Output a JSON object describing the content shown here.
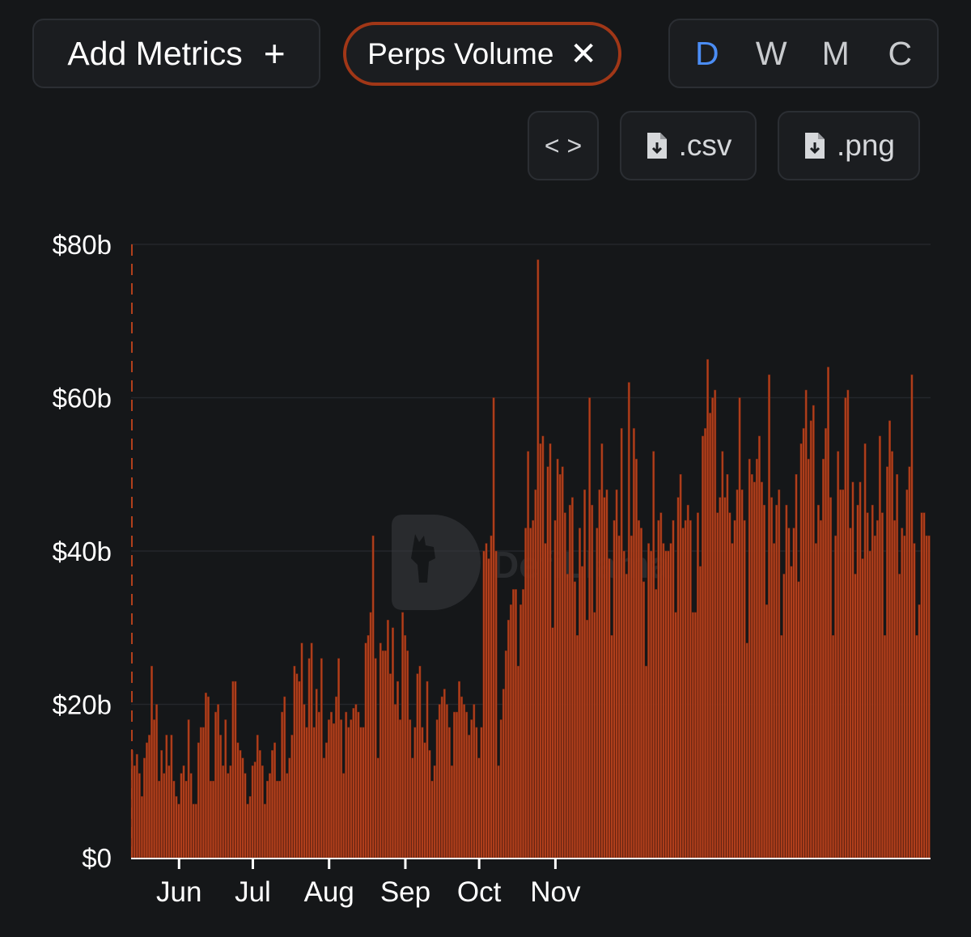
{
  "toolbar": {
    "add_metrics_label": "Add Metrics",
    "add_icon": "plus-icon",
    "active_metric": "Perps Volume",
    "remove_icon": "close-icon",
    "periods": [
      "D",
      "W",
      "M",
      "C"
    ],
    "active_period": "D",
    "embed_icon": "code-icon",
    "csv_label": ".csv",
    "png_label": ".png",
    "download_icon": "file-download-icon"
  },
  "watermark": {
    "text": "DefiLlama",
    "icon": "llama-logo-icon"
  },
  "colors": {
    "background": "#151719",
    "bar": "#b2401c",
    "bar_edge": "#6e2410",
    "accent_chip": "#a13717",
    "active_period": "#4b8df5"
  },
  "chart_data": {
    "type": "bar",
    "title": "",
    "series_name": "Perps Volume",
    "unit": "$b",
    "xlabel": "",
    "ylabel": "",
    "ylim": [
      0,
      80
    ],
    "yticks": [
      {
        "value": 0,
        "label": "$0"
      },
      {
        "value": 20,
        "label": "$20b"
      },
      {
        "value": 40,
        "label": "$40b"
      },
      {
        "value": 60,
        "label": "$60b"
      },
      {
        "value": 80,
        "label": "$80b"
      }
    ],
    "month_ticks": [
      {
        "index": 19,
        "label": "Jun"
      },
      {
        "index": 49,
        "label": "Jul"
      },
      {
        "index": 80,
        "label": "Aug"
      },
      {
        "index": 111,
        "label": "Sep"
      },
      {
        "index": 141,
        "label": "Oct"
      },
      {
        "index": 172,
        "label": "Nov"
      }
    ],
    "grid": true,
    "values": [
      14,
      12,
      13.5,
      11,
      8,
      13,
      15,
      16,
      25,
      18,
      20,
      10,
      14,
      11,
      16,
      12,
      16,
      10,
      8,
      7,
      11,
      12,
      10,
      18,
      11,
      7,
      7,
      15,
      17,
      17,
      21.5,
      21,
      10,
      10,
      19,
      20,
      16,
      12,
      18,
      11,
      12,
      23,
      23,
      15,
      14,
      13,
      11,
      7,
      8,
      12,
      12.5,
      16,
      14,
      12,
      7,
      10,
      11,
      14,
      15,
      10,
      10,
      19,
      21,
      11,
      13,
      16,
      25,
      24,
      23,
      28,
      20,
      17,
      26,
      28,
      17,
      22,
      19,
      26,
      13,
      15,
      18,
      19,
      17.5,
      21,
      26,
      18,
      11,
      19,
      17,
      18,
      19.5,
      20,
      19,
      17,
      17,
      28,
      29,
      32,
      42,
      26,
      13,
      28,
      27,
      27,
      31,
      24,
      30,
      20,
      23,
      18,
      32,
      29,
      27,
      18,
      13,
      17,
      24,
      25,
      17,
      15,
      23,
      14,
      10,
      12,
      18,
      20,
      21,
      22,
      20,
      17,
      12,
      19,
      19,
      23,
      21,
      20,
      19,
      16,
      18,
      20,
      17,
      13,
      17,
      40,
      41,
      39,
      42,
      60,
      40,
      12,
      18,
      22,
      27,
      31,
      33,
      35,
      35,
      25,
      33,
      35,
      43,
      53,
      43,
      44,
      48,
      78,
      54,
      55,
      41,
      51,
      54,
      30,
      44,
      52,
      50,
      51,
      45,
      37,
      46,
      47,
      36,
      29,
      43,
      38,
      48,
      31,
      60,
      46,
      32,
      43,
      48,
      54,
      47,
      48,
      39,
      29,
      44,
      48,
      42,
      56,
      40,
      37,
      62,
      42,
      56,
      52,
      44,
      43,
      36,
      25,
      41,
      40,
      53,
      35,
      44,
      45,
      41,
      40,
      40,
      41,
      44,
      32,
      47,
      50,
      43,
      44,
      46,
      44,
      32,
      32,
      45,
      38,
      55,
      56,
      65,
      58,
      60,
      61,
      45,
      47,
      53,
      47,
      50,
      45,
      41,
      44,
      48,
      60,
      48,
      44,
      28,
      52,
      50,
      49,
      52,
      55,
      49,
      46,
      33,
      63,
      47,
      41,
      46,
      48,
      29,
      37,
      46,
      43,
      38,
      43,
      50,
      36,
      54,
      56,
      61,
      52,
      57,
      59,
      41,
      46,
      44,
      52,
      56,
      64,
      47,
      29,
      42,
      53,
      48,
      48,
      60,
      61,
      43,
      49,
      37,
      46,
      49,
      39,
      54,
      45,
      40,
      46,
      42,
      44,
      55,
      45,
      29,
      51,
      57,
      53,
      44,
      50,
      37,
      43,
      42,
      48,
      51,
      63,
      41,
      29,
      33,
      45,
      45,
      42,
      42
    ]
  }
}
